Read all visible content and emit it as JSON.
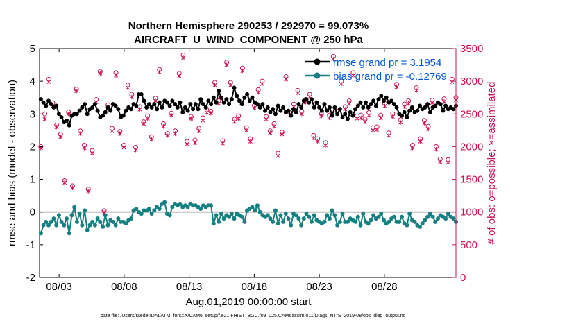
{
  "chart_data": {
    "type": "line",
    "title": "Northern Hemisphere 290253 / 292970 = 99.073%",
    "subtitle": "AIRCRAFT_U_WIND_COMPONENT @ 250 hPa",
    "xlabel": "Aug.01,2019 00:00:00 start",
    "ylabel": "rmse and bias (model - observation)",
    "y2label": "# of obs: o=possible; ×=assimilated",
    "footnote": "data file: /Users/raeder/DAI/ATM_forcXX/CAM6_setup/f.e21.FHIST_BGC.f09_025.CAM6assim.011/Diags_NTrS_2019-08/obs_diag_output.nc",
    "xlim": [
      1.5,
      33.5
    ],
    "ylim": [
      -2,
      5
    ],
    "y2lim": [
      0,
      3500
    ],
    "xticks": [
      3,
      8,
      13,
      18,
      23,
      28
    ],
    "xtick_labels": [
      "08/03",
      "08/08",
      "08/13",
      "08/18",
      "08/23",
      "08/28"
    ],
    "yticks": [
      -2,
      -1,
      0,
      1,
      2,
      3,
      4,
      5
    ],
    "ytick_labels": [
      "-2",
      "-1",
      "0",
      "1",
      "2",
      "3",
      "4",
      "5"
    ],
    "y2ticks": [
      0,
      500,
      1000,
      1500,
      2000,
      2500,
      3000,
      3500
    ],
    "y2tick_labels": [
      "0",
      "500",
      "1000",
      "1500",
      "2000",
      "2500",
      "3000",
      "3500"
    ],
    "colors": {
      "rmse": "#000000",
      "bias": "#168080",
      "obs": "#cc1155",
      "legend_text": "#0055dd",
      "zero_line": "#bbbbbb"
    },
    "series": [
      {
        "name": "rmse grand pr = 3.1954",
        "values": [
          3.45,
          3.35,
          3.25,
          3.4,
          3.3,
          3.2,
          3.25,
          3.0,
          2.9,
          2.75,
          2.8,
          2.65,
          2.95,
          3.0,
          3.0,
          3.1,
          3.2,
          3.3,
          3.0,
          3.15,
          3.2,
          3.3,
          3.1,
          2.9,
          2.95,
          3.05,
          3.2,
          3.1,
          3.3,
          3.25,
          3.15,
          2.9,
          2.95,
          3.1,
          3.2,
          3.15,
          3.3,
          3.25,
          3.6,
          3.6,
          3.4,
          3.2,
          3.3,
          3.2,
          3.3,
          3.15,
          3.35,
          3.2,
          3.4,
          3.35,
          3.25,
          3.4,
          3.3,
          3.2,
          3.35,
          3.05,
          3.2,
          3.1,
          3.3,
          3.15,
          3.3,
          3.15,
          3.45,
          3.3,
          3.2,
          3.4,
          3.3,
          3.5,
          3.35,
          3.7,
          3.5,
          3.35,
          3.45,
          3.3,
          3.45,
          3.8,
          3.55,
          3.4,
          3.3,
          3.5,
          3.6,
          3.4,
          3.5,
          3.35,
          3.3,
          3.2,
          3.3,
          3.1,
          3.2,
          3.05,
          3.15,
          3.0,
          3.25,
          3.1,
          3.2,
          3.05,
          3.1,
          2.95,
          3.15,
          3.05,
          3.3,
          3.2,
          3.4,
          3.45,
          3.35,
          3.45,
          3.2,
          3.35,
          3.2,
          3.1,
          3.3,
          3.1,
          3.2,
          2.95,
          3.2,
          3.0,
          3.15,
          2.9,
          3.0,
          2.85,
          3.05,
          2.95,
          3.15,
          3.25,
          3.35,
          3.2,
          3.35,
          3.2,
          3.3,
          3.4,
          3.25,
          3.45,
          3.55,
          3.4,
          3.5,
          3.35,
          3.4,
          3.3,
          3.2,
          3.0,
          2.95,
          3.05,
          2.9,
          3.1,
          3.2,
          3.05,
          3.1,
          3.25,
          3.15,
          3.2,
          3.3,
          3.05,
          3.2,
          3.25,
          3.35,
          3.3,
          3.1,
          3.25,
          3.15,
          3.2,
          3.15,
          3.25
        ]
      },
      {
        "name": "bias grand pr = -0.12769",
        "values": [
          -0.65,
          -0.4,
          -0.3,
          -0.4,
          -0.3,
          -0.2,
          -0.4,
          -0.1,
          -0.3,
          -0.4,
          -0.2,
          -0.65,
          -0.1,
          0.15,
          -0.3,
          -0.05,
          -0.4,
          0.05,
          -0.55,
          -0.4,
          -0.3,
          -0.4,
          -0.2,
          -0.3,
          -0.45,
          -0.1,
          -0.4,
          -0.25,
          -0.3,
          -0.4,
          -0.2,
          -0.3,
          -0.3,
          -0.35,
          -0.25,
          -0.2,
          0.05,
          0.1,
          0.0,
          -0.05,
          0.05,
          0.05,
          0.1,
          -0.05,
          0.05,
          0.15,
          0.1,
          0.25,
          0.3,
          -0.05,
          -0.1,
          0.15,
          0.25,
          0.2,
          0.25,
          0.15,
          0.2,
          0.15,
          0.25,
          0.2,
          0.2,
          0.15,
          0.1,
          0.2,
          0.15,
          0.2,
          0.2,
          -0.35,
          -0.1,
          -0.3,
          -0.05,
          -0.2,
          -0.1,
          -0.15,
          -0.05,
          -0.2,
          -0.05,
          -0.1,
          -0.15,
          -0.3,
          0.05,
          0.1,
          0.15,
          0.05,
          0.2,
          0.0,
          -0.1,
          -0.15,
          -0.1,
          -0.2,
          -0.3,
          0.05,
          -0.35,
          -0.1,
          -0.3,
          -0.05,
          -0.2,
          -0.4,
          -0.05,
          -0.1,
          -0.2,
          -0.4,
          -0.2,
          -0.05,
          -0.15,
          -0.3,
          -0.1,
          -0.25,
          -0.3,
          -0.35,
          -0.3,
          -0.1,
          -0.2,
          0.05,
          -0.1,
          -0.4,
          -0.3,
          -0.05,
          -0.3,
          -0.3,
          -0.2,
          -0.25,
          -0.3,
          -0.15,
          -0.4,
          -0.05,
          -0.3,
          -0.35,
          -0.25,
          -0.1,
          -0.2,
          -0.15,
          -0.05,
          -0.25,
          -0.35,
          -0.3,
          -0.2,
          -0.15,
          -0.3,
          -0.3,
          -0.15,
          -0.35,
          -0.4,
          -0.05,
          -0.25,
          -0.3,
          -0.4,
          -0.45,
          -0.35,
          -0.25,
          -0.15,
          -0.05,
          -0.15,
          -0.3,
          -0.2,
          -0.1,
          -0.15,
          -0.2,
          -0.05,
          -0.15,
          -0.2,
          -0.3
        ]
      }
    ],
    "obs": {
      "possible": [
        2000,
        2500,
        3030,
        2670,
        2330,
        2190,
        1480,
        2530,
        1400,
        2880,
        2240,
        2020,
        1350,
        1940,
        2720,
        3150,
        1020,
        2640,
        2280,
        3130,
        2230,
        2020,
        2940,
        2800,
        1990,
        2610,
        2380,
        2470,
        2150,
        2740,
        3180,
        2350,
        2200,
        2510,
        2240,
        3120,
        3400,
        2080,
        2460,
        2100,
        2280,
        2440,
        2560,
        2540,
        2980,
        2700,
        2090,
        3290,
        2980,
        2420,
        2470,
        3200,
        2290,
        2120,
        2630,
        2870,
        3000,
        2460,
        2240,
        2350,
        1900,
        2220,
        3070,
        2520,
        2650,
        2860,
        2540,
        2720,
        2800,
        2170,
        2120,
        2500,
        2060,
        2480,
        3380,
        2540,
        3000,
        2610,
        2700,
        3130,
        2470,
        2480,
        2420,
        2520,
        2290,
        2300,
        2480,
        2660,
        2210,
        2500,
        2950,
        2410,
        2650,
        2700,
        2020,
        2900,
        2120,
        2400,
        2310,
        2710,
        2000,
        1810,
        2730,
        1800,
        3030,
        2750
      ],
      "assimilated": [
        1980,
        2420,
        2990,
        2620,
        2300,
        2150,
        1450,
        2500,
        1370,
        2850,
        2200,
        1980,
        1320,
        1900,
        2680,
        3120,
        990,
        2600,
        2240,
        3090,
        2200,
        1990,
        2900,
        2760,
        1950,
        2570,
        2350,
        2430,
        2110,
        2700,
        3140,
        2310,
        2170,
        2480,
        2200,
        3080,
        3360,
        2040,
        2430,
        2060,
        2240,
        2400,
        2520,
        2510,
        2940,
        2660,
        2050,
        3250,
        2940,
        2380,
        2430,
        3160,
        2250,
        2080,
        2590,
        2830,
        2960,
        2420,
        2210,
        2310,
        1860,
        2190,
        3030,
        2480,
        2610,
        2820,
        2500,
        2680,
        2760,
        2130,
        2080,
        2470,
        2020,
        2440,
        3340,
        2500,
        2960,
        2570,
        2660,
        3090,
        2430,
        2440,
        2380,
        2480,
        2250,
        2260,
        2440,
        2620,
        2170,
        2460,
        2910,
        2370,
        2610,
        2660,
        1980,
        2860,
        2080,
        2360,
        2270,
        2670,
        1960,
        1770,
        2690,
        1760,
        2990,
        2710
      ]
    }
  }
}
